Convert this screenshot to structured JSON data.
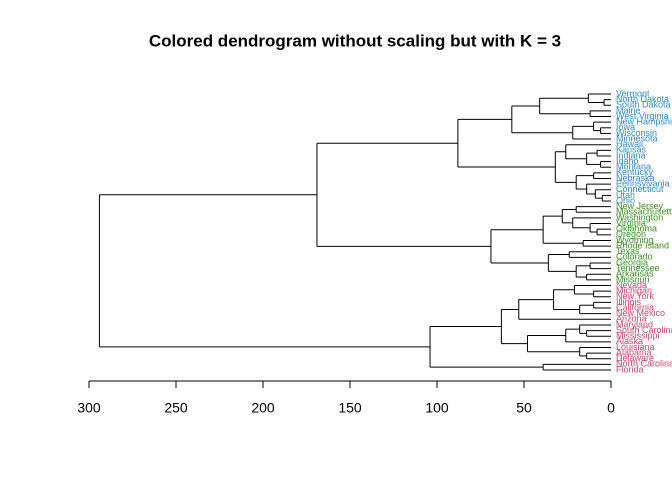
{
  "chart_data": {
    "type": "dendrogram",
    "title": "Colored dendrogram without scaling but with K = 3",
    "xlim": [
      300,
      0
    ],
    "xticks": [
      300,
      250,
      200,
      150,
      100,
      50,
      0
    ],
    "leaves": [
      {
        "label": "Vermont",
        "color": "#2f8ac4"
      },
      {
        "label": "North Dakota",
        "color": "#2f8ac4"
      },
      {
        "label": "South Dakota",
        "color": "#2f8ac4"
      },
      {
        "label": "Maine",
        "color": "#2f8ac4"
      },
      {
        "label": "West Virginia",
        "color": "#2f8ac4"
      },
      {
        "label": "New Hampshire",
        "color": "#2f8ac4"
      },
      {
        "label": "Iowa",
        "color": "#2f8ac4"
      },
      {
        "label": "Wisconsin",
        "color": "#2f8ac4"
      },
      {
        "label": "Minnesota",
        "color": "#2f8ac4"
      },
      {
        "label": "Hawaii",
        "color": "#2f8ac4"
      },
      {
        "label": "Kansas",
        "color": "#2f8ac4"
      },
      {
        "label": "Indiana",
        "color": "#2f8ac4"
      },
      {
        "label": "Idaho",
        "color": "#2f8ac4"
      },
      {
        "label": "Montana",
        "color": "#2f8ac4"
      },
      {
        "label": "Kentucky",
        "color": "#2f8ac4"
      },
      {
        "label": "Nebraska",
        "color": "#2f8ac4"
      },
      {
        "label": "Pennsylvania",
        "color": "#2f8ac4"
      },
      {
        "label": "Connecticut",
        "color": "#2f8ac4"
      },
      {
        "label": "Utah",
        "color": "#2f8ac4"
      },
      {
        "label": "Ohio",
        "color": "#2f8ac4"
      },
      {
        "label": "New Jersey",
        "color": "#3a8f1e"
      },
      {
        "label": "Massachusetts",
        "color": "#3a8f1e"
      },
      {
        "label": "Washington",
        "color": "#3a8f1e"
      },
      {
        "label": "Virginia",
        "color": "#3a8f1e"
      },
      {
        "label": "Oklahoma",
        "color": "#3a8f1e"
      },
      {
        "label": "Oregon",
        "color": "#3a8f1e"
      },
      {
        "label": "Wyoming",
        "color": "#3a8f1e"
      },
      {
        "label": "Rhode Island",
        "color": "#3a8f1e"
      },
      {
        "label": "Texas",
        "color": "#3a8f1e"
      },
      {
        "label": "Colorado",
        "color": "#3a8f1e"
      },
      {
        "label": "Georgia",
        "color": "#3a8f1e"
      },
      {
        "label": "Tennessee",
        "color": "#3a8f1e"
      },
      {
        "label": "Arkansas",
        "color": "#3a8f1e"
      },
      {
        "label": "Missouri",
        "color": "#3a8f1e"
      },
      {
        "label": "Nevada",
        "color": "#c9466c"
      },
      {
        "label": "Michigan",
        "color": "#c9466c"
      },
      {
        "label": "New York",
        "color": "#c9466c"
      },
      {
        "label": "Illinois",
        "color": "#c9466c"
      },
      {
        "label": "California",
        "color": "#c9466c"
      },
      {
        "label": "New Mexico",
        "color": "#c9466c"
      },
      {
        "label": "Arizona",
        "color": "#c9466c"
      },
      {
        "label": "Maryland",
        "color": "#c9466c"
      },
      {
        "label": "South Carolina",
        "color": "#c9466c"
      },
      {
        "label": "Mississippi",
        "color": "#c9466c"
      },
      {
        "label": "Alaska",
        "color": "#c9466c"
      },
      {
        "label": "Louisiana",
        "color": "#c9466c"
      },
      {
        "label": "Alabama",
        "color": "#c9466c"
      },
      {
        "label": "Delaware",
        "color": "#c9466c"
      },
      {
        "label": "North Carolina",
        "color": "#c9466c"
      },
      {
        "label": "Florida",
        "color": "#c9466c"
      }
    ],
    "tree": {
      "height": 294,
      "children": [
        {
          "height": 169,
          "children": [
            {
              "height": 88,
              "children": [
                {
                  "height": 57,
                  "children": [
                    {
                      "height": 41,
                      "children": [
                        {
                          "height": 13,
                          "children": [
                            0,
                            {
                              "height": 4,
                              "children": [
                                1,
                                2
                              ]
                            }
                          ]
                        },
                        {
                          "height": 12,
                          "children": [
                            3,
                            4
                          ]
                        }
                      ]
                    },
                    {
                      "height": 22,
                      "children": [
                        {
                          "height": 10,
                          "children": [
                            5,
                            {
                              "height": 6,
                              "children": [
                                6,
                                7
                              ]
                            }
                          ]
                        },
                        8
                      ]
                    }
                  ]
                },
                {
                  "height": 32,
                  "children": [
                    {
                      "height": 26,
                      "children": [
                        9,
                        {
                          "height": 14,
                          "children": [
                            {
                              "height": 8,
                              "children": [
                                10,
                                11
                              ]
                            },
                            {
                              "height": 6,
                              "children": [
                                12,
                                13
                              ]
                            }
                          ]
                        }
                      ]
                    },
                    {
                      "height": 20,
                      "children": [
                        {
                          "height": 10,
                          "children": [
                            14,
                            15
                          ]
                        },
                        {
                          "height": 14,
                          "children": [
                            16,
                            {
                              "height": 9,
                              "children": [
                                17,
                                {
                                  "height": 5,
                                  "children": [
                                    18,
                                    19
                                  ]
                                }
                              ]
                            }
                          ]
                        }
                      ]
                    }
                  ]
                }
              ]
            },
            {
              "height": 69,
              "children": [
                {
                  "height": 39,
                  "children": [
                    {
                      "height": 28,
                      "children": [
                        {
                          "height": 20,
                          "children": [
                            20,
                            21
                          ]
                        },
                        {
                          "height": 22,
                          "children": [
                            22,
                            {
                              "height": 12,
                              "children": [
                                23,
                                {
                                  "height": 8,
                                  "children": [
                                    24,
                                    25
                                  ]
                                }
                              ]
                            }
                          ]
                        }
                      ]
                    },
                    {
                      "height": 16,
                      "children": [
                        26,
                        27
                      ]
                    }
                  ]
                },
                {
                  "height": 36,
                  "children": [
                    {
                      "height": 24,
                      "children": [
                        28,
                        29
                      ]
                    },
                    {
                      "height": 20,
                      "children": [
                        {
                          "height": 12,
                          "children": [
                            30,
                            31
                          ]
                        },
                        {
                          "height": 14,
                          "children": [
                            32,
                            33
                          ]
                        }
                      ]
                    }
                  ]
                }
              ]
            }
          ]
        },
        {
          "height": 104,
          "children": [
            {
              "height": 63,
              "children": [
                {
                  "height": 53,
                  "children": [
                    {
                      "height": 33,
                      "children": [
                        {
                          "height": 21,
                          "children": [
                            34,
                            {
                              "height": 10,
                              "children": [
                                35,
                                36
                              ]
                            }
                          ]
                        },
                        {
                          "height": 18,
                          "children": [
                            {
                              "height": 10,
                              "children": [
                                37,
                                38
                              ]
                            },
                            39
                          ]
                        }
                      ]
                    },
                    40
                  ]
                },
                {
                  "height": 48,
                  "children": [
                    {
                      "height": 26,
                      "children": [
                        {
                          "height": 18,
                          "children": [
                            41,
                            {
                              "height": 14,
                              "children": [
                                42,
                                43
                              ]
                            }
                          ]
                        },
                        44
                      ]
                    },
                    {
                      "height": 18,
                      "children": [
                        45,
                        {
                          "height": 14,
                          "children": [
                            46,
                            47
                          ]
                        }
                      ]
                    }
                  ]
                }
              ]
            },
            {
              "height": 39,
              "children": [
                48,
                49
              ]
            }
          ]
        }
      ]
    }
  }
}
